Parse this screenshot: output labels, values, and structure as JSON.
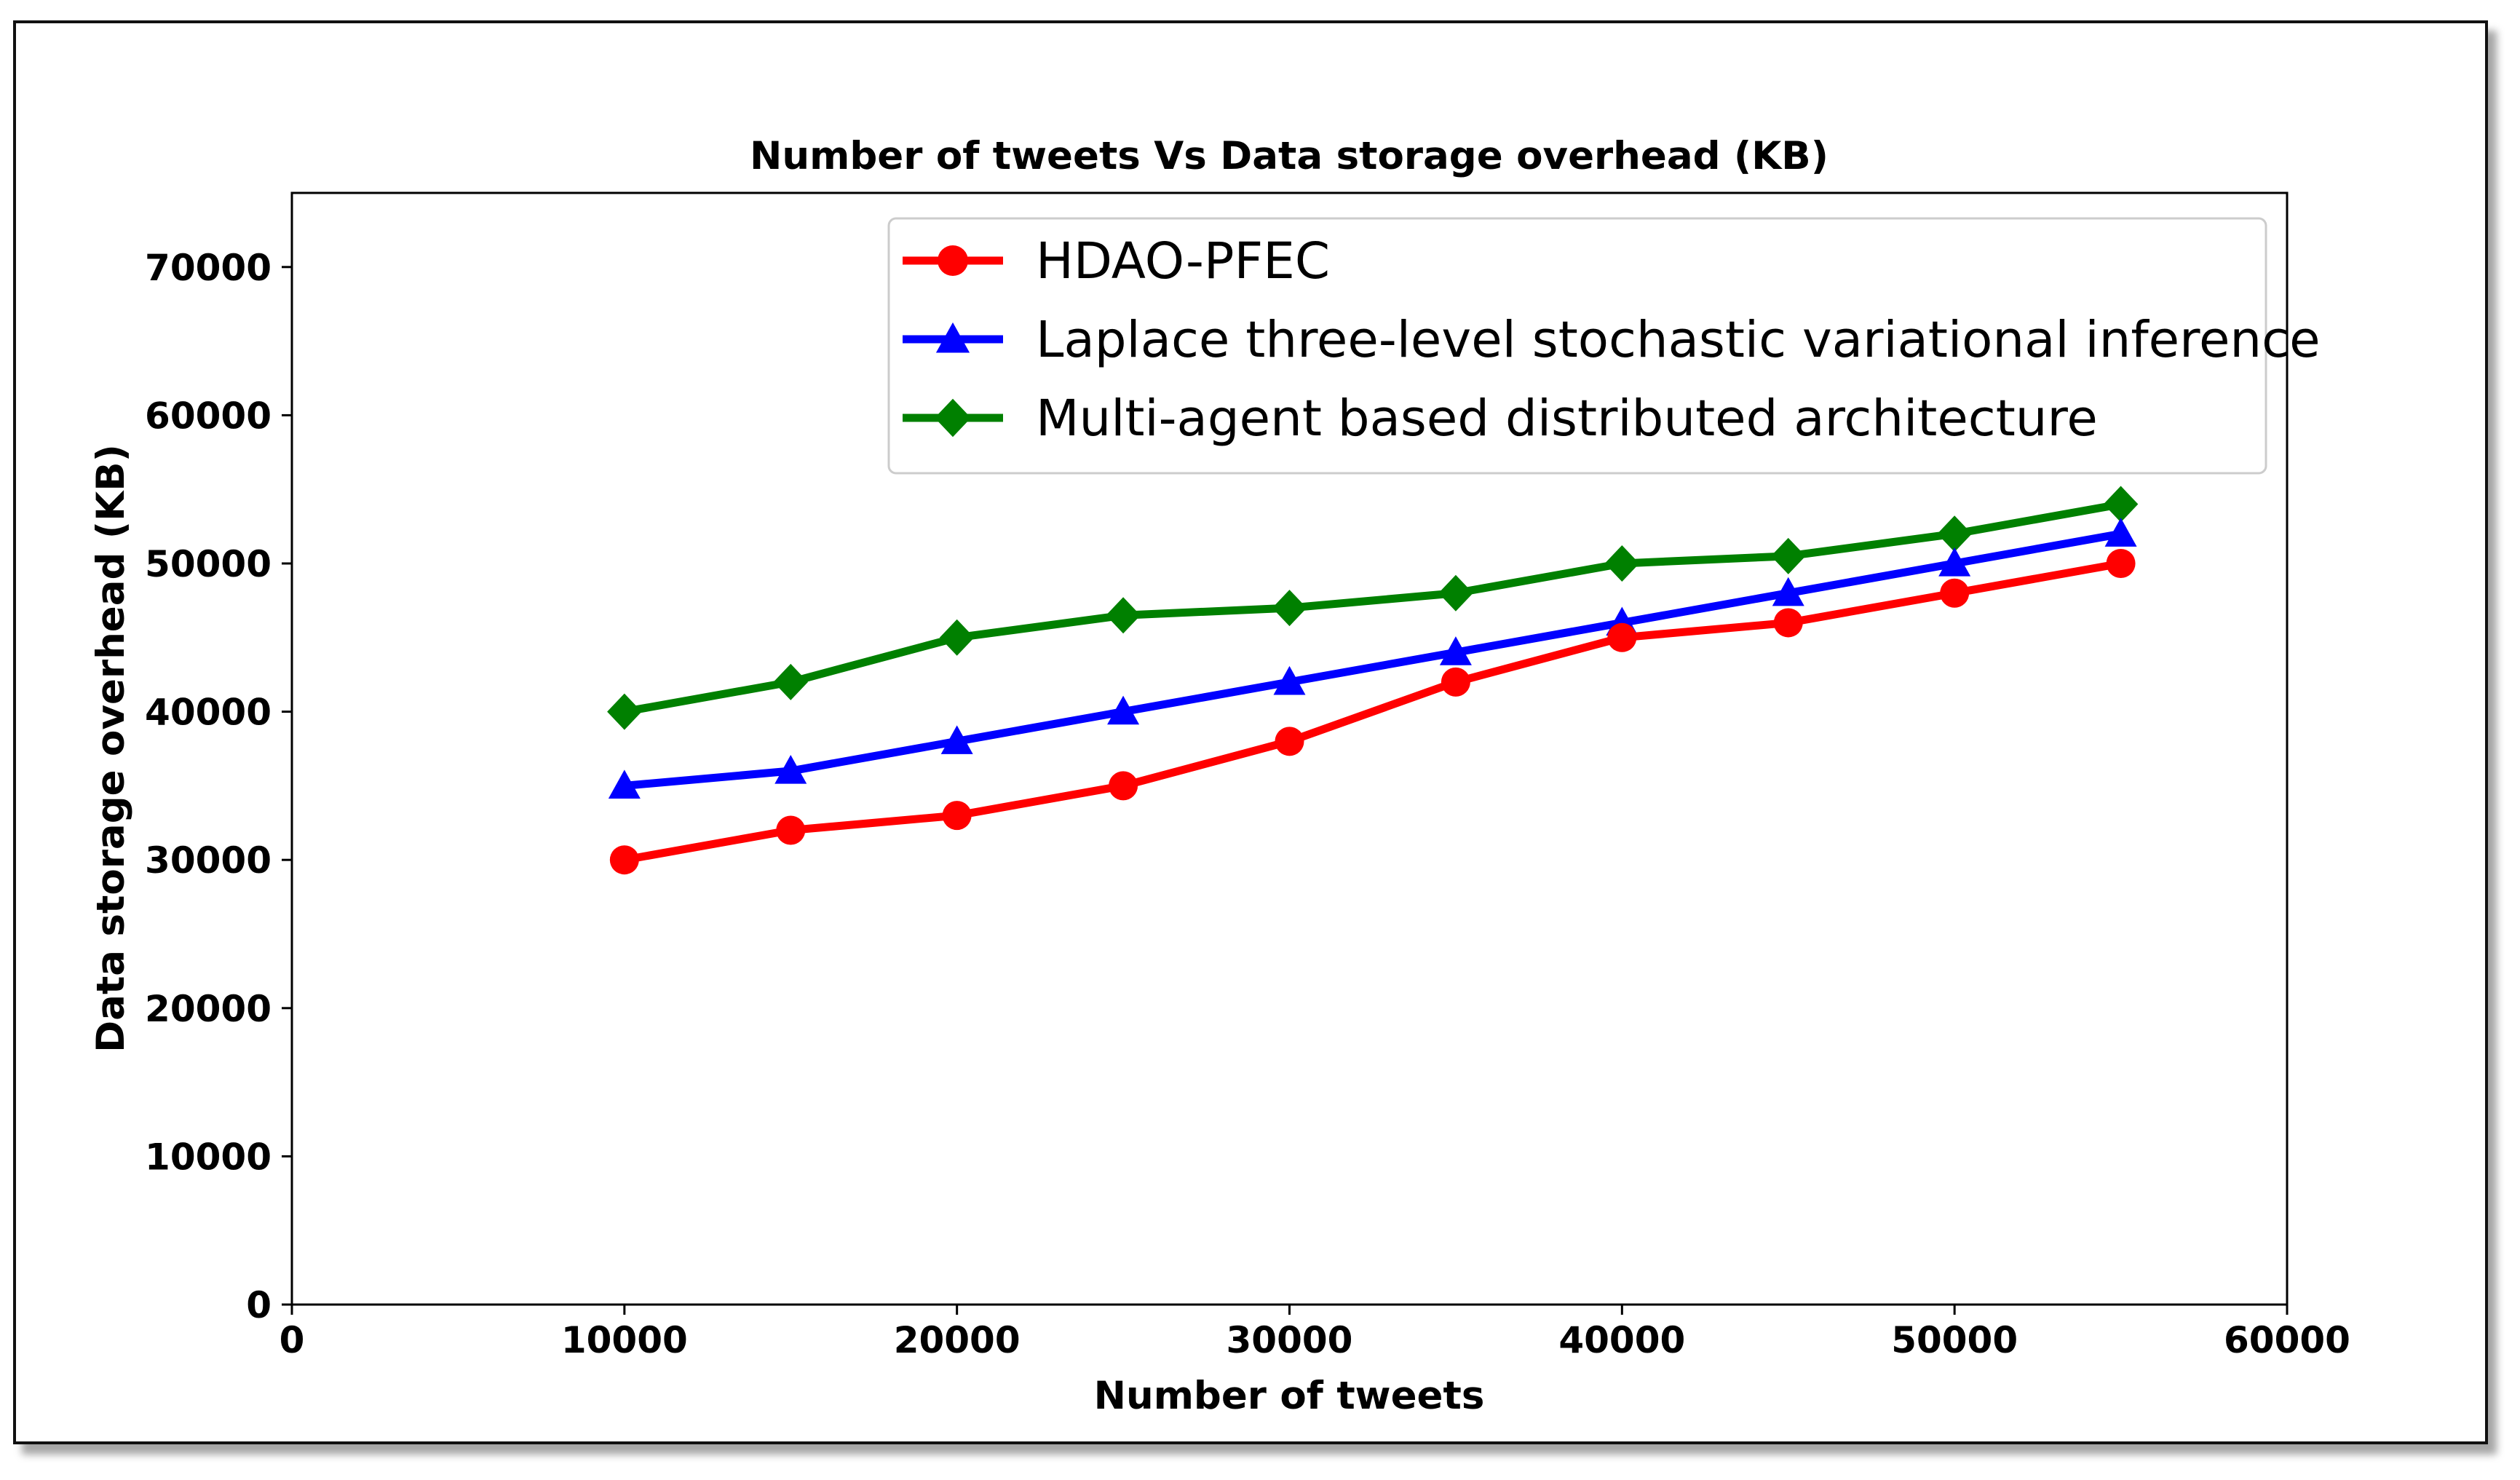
{
  "chart_data": {
    "type": "line",
    "title": "Number of tweets Vs Data storage overhead (KB)",
    "xlabel": "Number of tweets",
    "ylabel": "Data storage overhead (KB)",
    "xlim": [
      0,
      60000
    ],
    "ylim": [
      0,
      75000
    ],
    "x_ticks": [
      0,
      10000,
      20000,
      30000,
      40000,
      50000,
      60000
    ],
    "y_ticks": [
      0,
      10000,
      20000,
      30000,
      40000,
      50000,
      60000,
      70000
    ],
    "x_tick_labels": [
      "0",
      "10000",
      "20000",
      "30000",
      "40000",
      "50000",
      "60000"
    ],
    "y_tick_labels": [
      "0",
      "10000",
      "20000",
      "30000",
      "40000",
      "50000",
      "60000",
      "70000"
    ],
    "grid": false,
    "legend_position": "top-right",
    "x": [
      10000,
      15000,
      20000,
      25000,
      30000,
      35000,
      40000,
      45000,
      50000,
      55000
    ],
    "series": [
      {
        "name": "HDAO-PFEC",
        "color": "#ff0000",
        "marker": "circle",
        "values": [
          30000,
          32000,
          33000,
          35000,
          38000,
          42000,
          45000,
          46000,
          48000,
          50000
        ]
      },
      {
        "name": "Laplace three-level stochastic variational inference",
        "color": "#0000ff",
        "marker": "triangle",
        "values": [
          35000,
          36000,
          38000,
          40000,
          42000,
          44000,
          46000,
          48000,
          50000,
          52000
        ]
      },
      {
        "name": "Multi-agent based distributed architecture",
        "color": "#008000",
        "marker": "diamond",
        "values": [
          40000,
          42000,
          45000,
          46500,
          47000,
          48000,
          50000,
          50500,
          52000,
          54000
        ]
      }
    ]
  }
}
